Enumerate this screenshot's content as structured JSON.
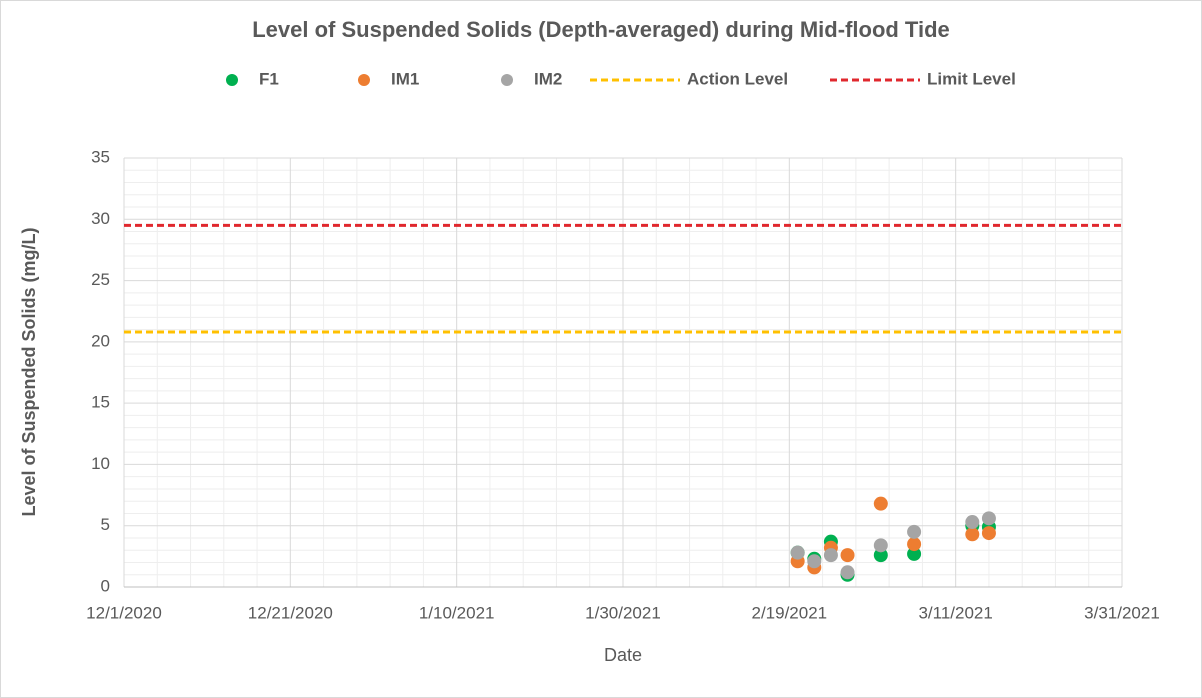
{
  "chart_data": {
    "type": "scatter",
    "title": "Level of Suspended Solids (Depth-averaged) during Mid-flood Tide",
    "x_label": "Date",
    "y_label": "Level of Suspended Solids (mg/L)",
    "x": [
      "2/20/2021",
      "2/22/2021",
      "2/24/2021",
      "2/26/2021",
      "3/2/2021",
      "3/6/2021",
      "3/13/2021",
      "3/15/2021"
    ],
    "series": [
      {
        "name": "F1",
        "color": "#00b050",
        "values": [
          2.8,
          2.3,
          3.7,
          1.0,
          2.6,
          2.7,
          5.0,
          4.9
        ]
      },
      {
        "name": "IM1",
        "color": "#ed7d31",
        "values": [
          2.1,
          1.6,
          3.2,
          2.6,
          6.8,
          3.5,
          4.3,
          4.4
        ]
      },
      {
        "name": "IM2",
        "color": "#a5a5a5",
        "values": [
          2.8,
          2.1,
          2.6,
          1.2,
          3.4,
          4.5,
          5.3,
          5.6
        ]
      }
    ],
    "lines": [
      {
        "name": "Action Level",
        "color": "#ffc000",
        "value": 20.8
      },
      {
        "name": "Limit Level",
        "color": "#e0282e",
        "value": 29.5
      }
    ],
    "xlim": [
      "12/1/2020",
      "3/31/2021"
    ],
    "xticks": [
      "12/1/2020",
      "12/21/2020",
      "1/10/2021",
      "1/30/2021",
      "2/19/2021",
      "3/11/2021",
      "3/31/2021"
    ],
    "ylim": [
      0,
      35
    ],
    "yticks": [
      0,
      5,
      10,
      15,
      20,
      25,
      30,
      35
    ],
    "grid": true,
    "minor_grid": true,
    "legend": "top"
  }
}
